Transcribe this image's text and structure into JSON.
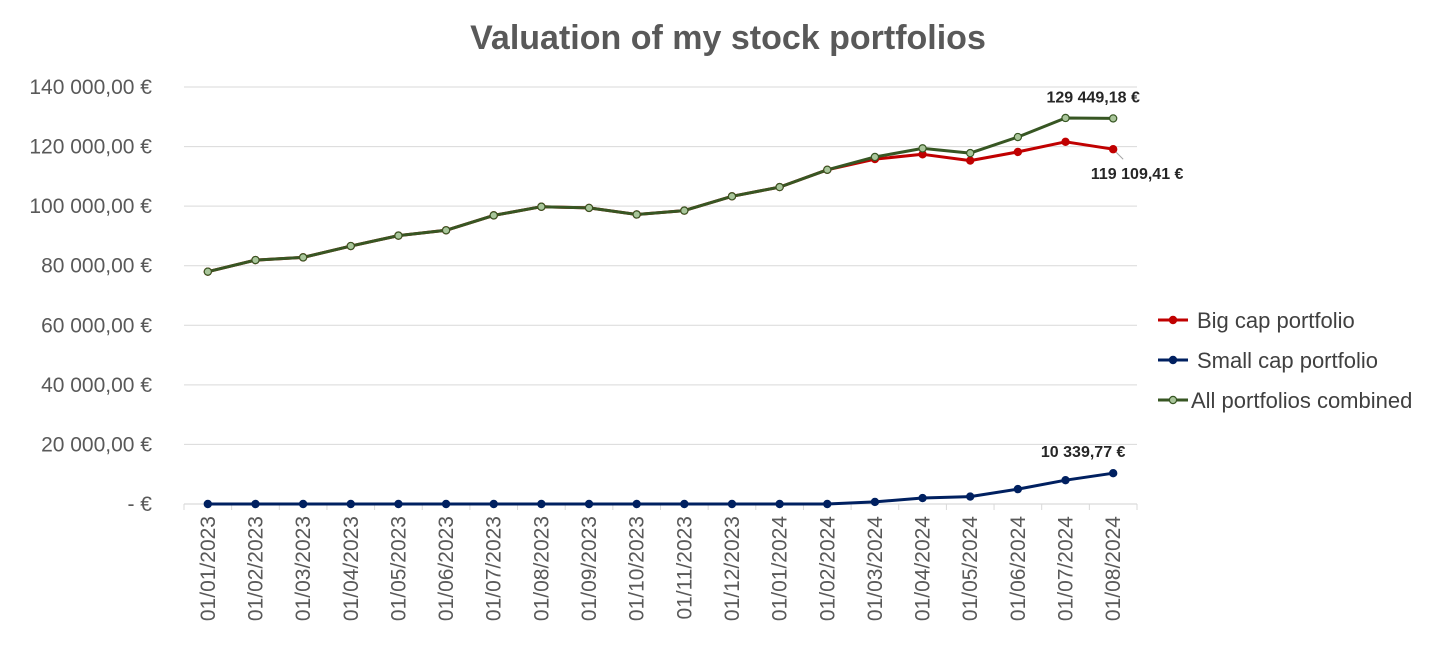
{
  "chart_data": {
    "type": "line",
    "title": "Valuation of my stock portfolios",
    "xlabel": "",
    "ylabel": "",
    "ylim": [
      0,
      140000
    ],
    "yticks": [
      {
        "value": 0,
        "label": "-  €"
      },
      {
        "value": 20000,
        "label": "20 000,00 €"
      },
      {
        "value": 40000,
        "label": "40 000,00 €"
      },
      {
        "value": 60000,
        "label": "60 000,00 €"
      },
      {
        "value": 80000,
        "label": "80 000,00 €"
      },
      {
        "value": 100000,
        "label": "100 000,00 €"
      },
      {
        "value": 120000,
        "label": "120 000,00 €"
      },
      {
        "value": 140000,
        "label": "140 000,00 €"
      }
    ],
    "grid": true,
    "legend_position": "right",
    "categories": [
      "01/01/2023",
      "01/02/2023",
      "01/03/2023",
      "01/04/2023",
      "01/05/2023",
      "01/06/2023",
      "01/07/2023",
      "01/08/2023",
      "01/09/2023",
      "01/10/2023",
      "01/11/2023",
      "01/12/2023",
      "01/01/2024",
      "01/02/2024",
      "01/03/2024",
      "01/04/2024",
      "01/05/2024",
      "01/06/2024",
      "01/07/2024",
      "01/08/2024"
    ],
    "series": [
      {
        "name": "Big cap portfolio",
        "color": "#c00000",
        "marker_fill": "#c00000",
        "values": [
          78000,
          81900,
          82800,
          86600,
          90100,
          91900,
          96900,
          99800,
          99400,
          97200,
          98500,
          103300,
          106400,
          112200,
          115800,
          117400,
          115300,
          118200,
          121600,
          119109.41
        ]
      },
      {
        "name": "Small cap portfolio",
        "color": "#002060",
        "marker_fill": "#002060",
        "values": [
          0,
          0,
          0,
          0,
          0,
          0,
          0,
          0,
          0,
          0,
          0,
          0,
          0,
          0,
          700,
          2000,
          2500,
          5000,
          8000,
          10339.77
        ]
      },
      {
        "name": "All portfolios combined",
        "color": "#375623",
        "marker_fill": "#a9c59a",
        "values": [
          78000,
          81900,
          82800,
          86600,
          90100,
          91900,
          96900,
          99800,
          99400,
          97200,
          98500,
          103300,
          106400,
          112200,
          116500,
          119400,
          117800,
          123200,
          129600,
          129449.18
        ]
      }
    ],
    "annotations": [
      {
        "series": 2,
        "index": 19,
        "text": "129 449,18 €"
      },
      {
        "series": 0,
        "index": 19,
        "text": "119 109,41 €"
      },
      {
        "series": 1,
        "index": 19,
        "text": "10 339,77 €"
      }
    ]
  }
}
